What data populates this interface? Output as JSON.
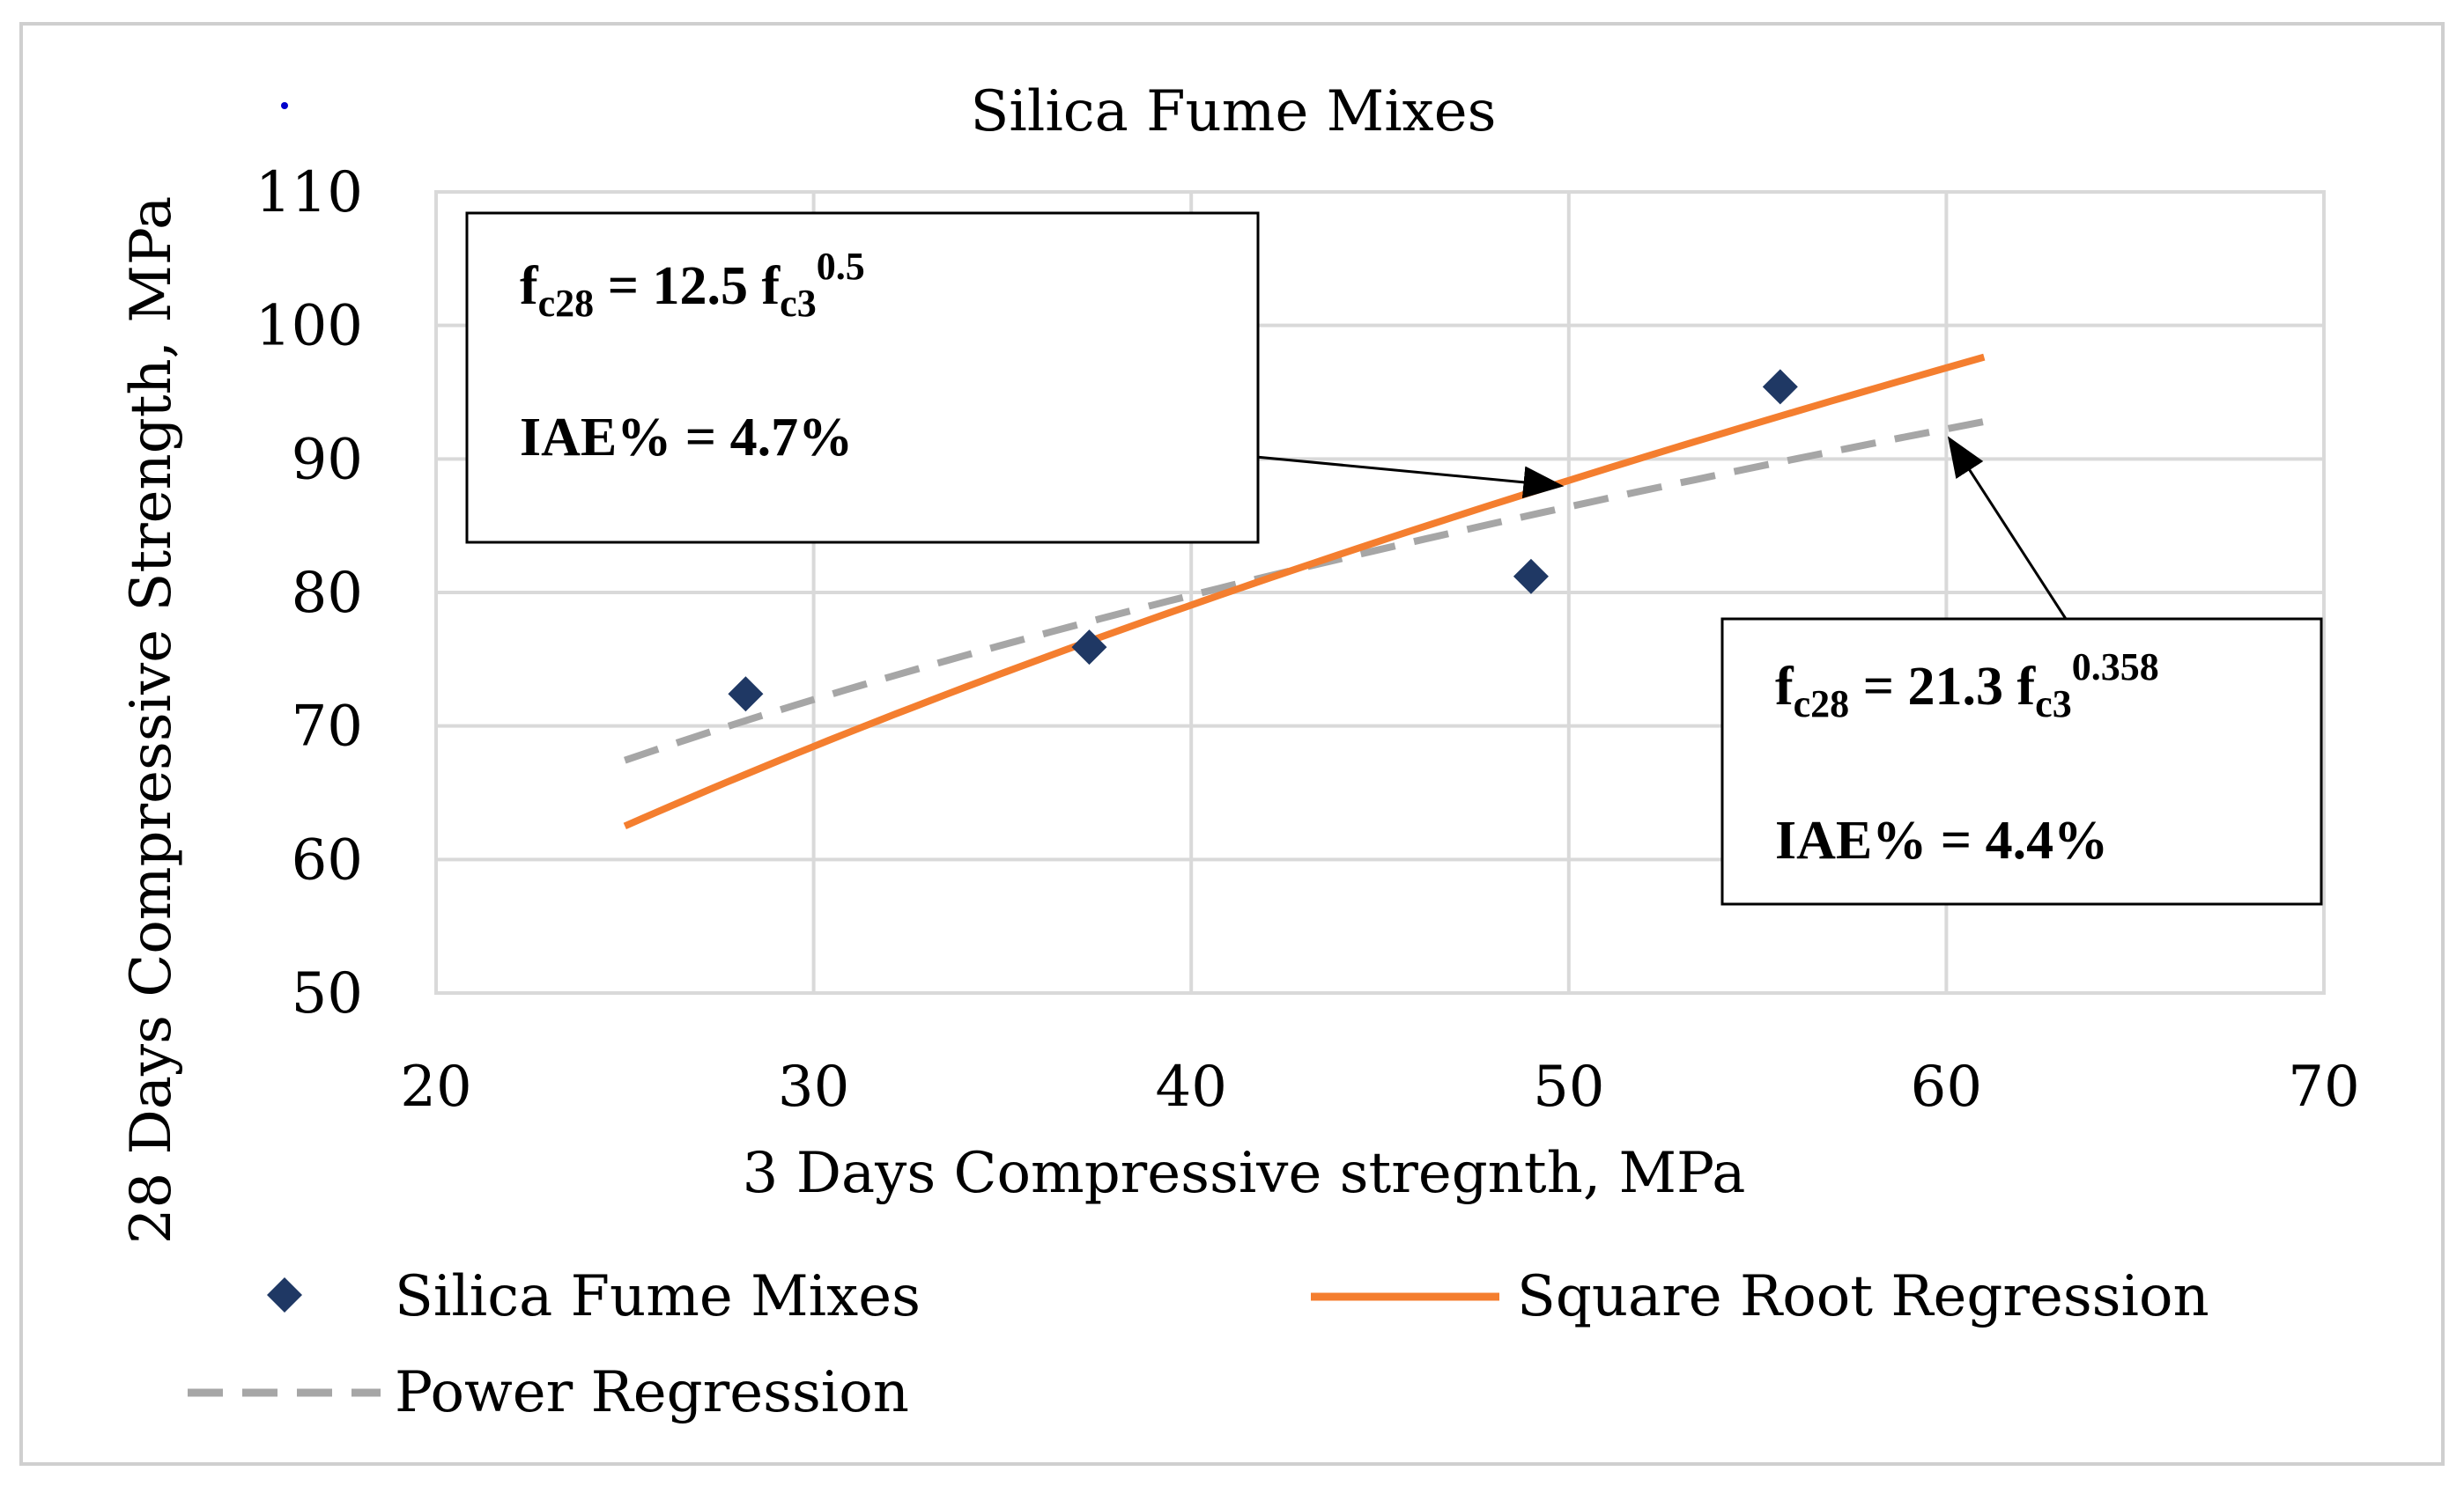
{
  "chart_data": {
    "type": "scatter",
    "title": "Silica Fume Mixes",
    "xlabel": "3 Days Compressive stregnth, MPa",
    "ylabel": "28 Days Compressive Strength, MPa",
    "xlim": [
      20,
      70
    ],
    "ylim": [
      50,
      110
    ],
    "xticks": [
      20,
      30,
      40,
      50,
      60,
      70
    ],
    "yticks": [
      50,
      60,
      70,
      80,
      90,
      100,
      110
    ],
    "grid": true,
    "legend_position": "bottom",
    "series": [
      {
        "name": "Silica Fume Mixes",
        "kind": "points",
        "marker": "diamond",
        "color": "#1f3864",
        "x": [
          28.2,
          37.3,
          49.0,
          55.6
        ],
        "y": [
          72.4,
          75.9,
          81.2,
          95.4
        ]
      },
      {
        "name": "Square Root Regression",
        "kind": "curve",
        "style": "solid",
        "color": "#f47e2f",
        "coefficient": 12.5,
        "exponent": 0.5,
        "x_range": [
          25,
          61
        ]
      },
      {
        "name": "Power Regression",
        "kind": "curve",
        "style": "dashed",
        "color": "#a6a6a6",
        "coefficient": 21.3,
        "exponent": 0.358,
        "x_range": [
          25,
          61
        ]
      }
    ],
    "annotations": [
      {
        "lhs": "f",
        "lhs_sub": "c28",
        "eq": " = 12.5 f",
        "rhs_sub": "c3",
        "rhs_sup": "0.5",
        "iae": "IAE% = 4.7%",
        "points_to_series": "Square Root Regression",
        "target_x": 50
      },
      {
        "lhs": "f",
        "lhs_sub": "c28",
        "eq": " = 21.3 f",
        "rhs_sub": "c3",
        "rhs_sup": "0.358",
        "iae": "IAE% = 4.4%",
        "points_to_series": "Power Regression",
        "target_x": 60
      }
    ]
  }
}
